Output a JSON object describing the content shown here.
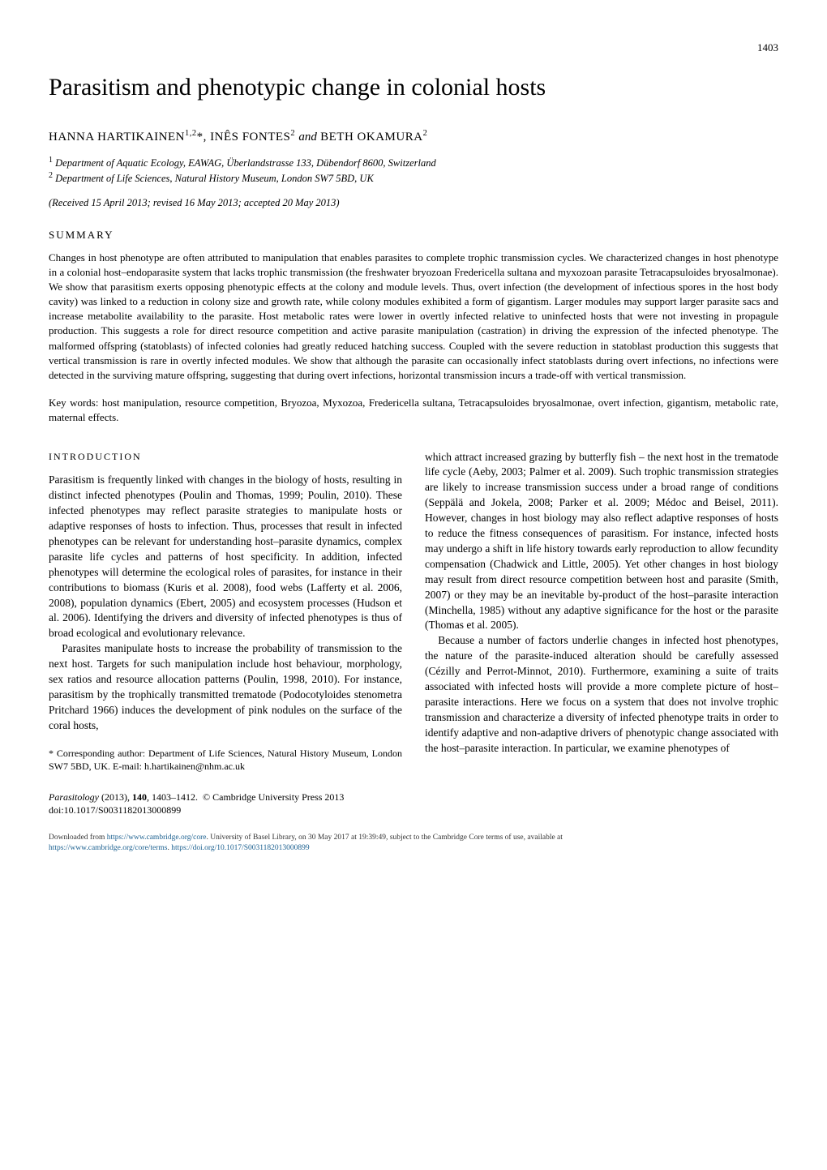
{
  "page_number": "1403",
  "title": "Parasitism and phenotypic change in colonial hosts",
  "authors_html": "HANNA HARTIKAINEN<sup>1,2</sup>*, INÊS FONTES<sup>2</sup> <span class=\"and\">and</span> BETH OKAMURA<sup>2</sup>",
  "affiliations": [
    "Department of Aquatic Ecology, EAWAG, Überlandstrasse 133, Dübendorf 8600, Switzerland",
    "Department of Life Sciences, Natural History Museum, London SW7 5BD, UK"
  ],
  "dates": "(Received 15 April 2013; revised 16 May 2013; accepted 20 May 2013)",
  "summary_head": "SUMMARY",
  "summary": "Changes in host phenotype are often attributed to manipulation that enables parasites to complete trophic transmission cycles. We characterized changes in host phenotype in a colonial host–endoparasite system that lacks trophic transmission (the freshwater bryozoan Fredericella sultana and myxozoan parasite Tetracapsuloides bryosalmonae). We show that parasitism exerts opposing phenotypic effects at the colony and module levels. Thus, overt infection (the development of infectious spores in the host body cavity) was linked to a reduction in colony size and growth rate, while colony modules exhibited a form of gigantism. Larger modules may support larger parasite sacs and increase metabolite availability to the parasite. Host metabolic rates were lower in overtly infected relative to uninfected hosts that were not investing in propagule production. This suggests a role for direct resource competition and active parasite manipulation (castration) in driving the expression of the infected phenotype. The malformed offspring (statoblasts) of infected colonies had greatly reduced hatching success. Coupled with the severe reduction in statoblast production this suggests that vertical transmission is rare in overtly infected modules. We show that although the parasite can occasionally infect statoblasts during overt infections, no infections were detected in the surviving mature offspring, suggesting that during overt infections, horizontal transmission incurs a trade-off with vertical transmission.",
  "keywords": "Key words: host manipulation, resource competition, Bryozoa, Myxozoa, Fredericella sultana, Tetracapsuloides bryosalmonae, overt infection, gigantism, metabolic rate, maternal effects.",
  "intro_head": "INTRODUCTION",
  "col_left_p1": "Parasitism is frequently linked with changes in the biology of hosts, resulting in distinct infected phenotypes (Poulin and Thomas, 1999; Poulin, 2010). These infected phenotypes may reflect parasite strategies to manipulate hosts or adaptive responses of hosts to infection. Thus, processes that result in infected phenotypes can be relevant for understanding host–parasite dynamics, complex parasite life cycles and patterns of host specificity. In addition, infected phenotypes will determine the ecological roles of parasites, for instance in their contributions to biomass (Kuris et al. 2008), food webs (Lafferty et al. 2006, 2008), population dynamics (Ebert, 2005) and ecosystem processes (Hudson et al. 2006). Identifying the drivers and diversity of infected phenotypes is thus of broad ecological and evolutionary relevance.",
  "col_left_p2": "Parasites manipulate hosts to increase the probability of transmission to the next host. Targets for such manipulation include host behaviour, morphology, sex ratios and resource allocation patterns (Poulin, 1998, 2010). For instance, parasitism by the trophically transmitted trematode (Podocotyloides stenometra Pritchard 1966) induces the development of pink nodules on the surface of the coral hosts,",
  "footnote": "* Corresponding author: Department of Life Sciences, Natural History Museum, London SW7 5BD, UK. E-mail: h.hartikainen@nhm.ac.uk",
  "col_right_p1": "which attract increased grazing by butterfly fish – the next host in the trematode life cycle (Aeby, 2003; Palmer et al. 2009). Such trophic transmission strategies are likely to increase transmission success under a broad range of conditions (Seppälä and Jokela, 2008; Parker et al. 2009; Médoc and Beisel, 2011). However, changes in host biology may also reflect adaptive responses of hosts to reduce the fitness consequences of parasitism. For instance, infected hosts may undergo a shift in life history towards early reproduction to allow fecundity compensation (Chadwick and Little, 2005). Yet other changes in host biology may result from direct resource competition between host and parasite (Smith, 2007) or they may be an inevitable by-product of the host–parasite interaction (Minchella, 1985) without any adaptive significance for the host or the parasite (Thomas et al. 2005).",
  "col_right_p2": "Because a number of factors underlie changes in infected host phenotypes, the nature of the parasite-induced alteration should be carefully assessed (Cézilly and Perrot-Minnot, 2010). Furthermore, examining a suite of traits associated with infected hosts will provide a more complete picture of host–parasite interactions. Here we focus on a system that does not involve trophic transmission and characterize a diversity of infected phenotype traits in order to identify adaptive and non-adaptive drivers of phenotypic change associated with the host–parasite interaction. In particular, we examine phenotypes of",
  "citation": "Parasitology (2013), 140, 1403–1412.  © Cambridge University Press 2013",
  "doi": "doi:10.1017/S0031182013000899",
  "download_prefix": "Downloaded from ",
  "download_link1": "https://www.cambridge.org/core",
  "download_mid1": ". University of Basel Library, on 30 May 2017 at 19:39:49, subject to the Cambridge Core terms of use, available at",
  "download_link2": "https://www.cambridge.org/core/terms",
  "download_mid2": ". ",
  "download_link3": "https://doi.org/10.1017/S0031182013000899"
}
